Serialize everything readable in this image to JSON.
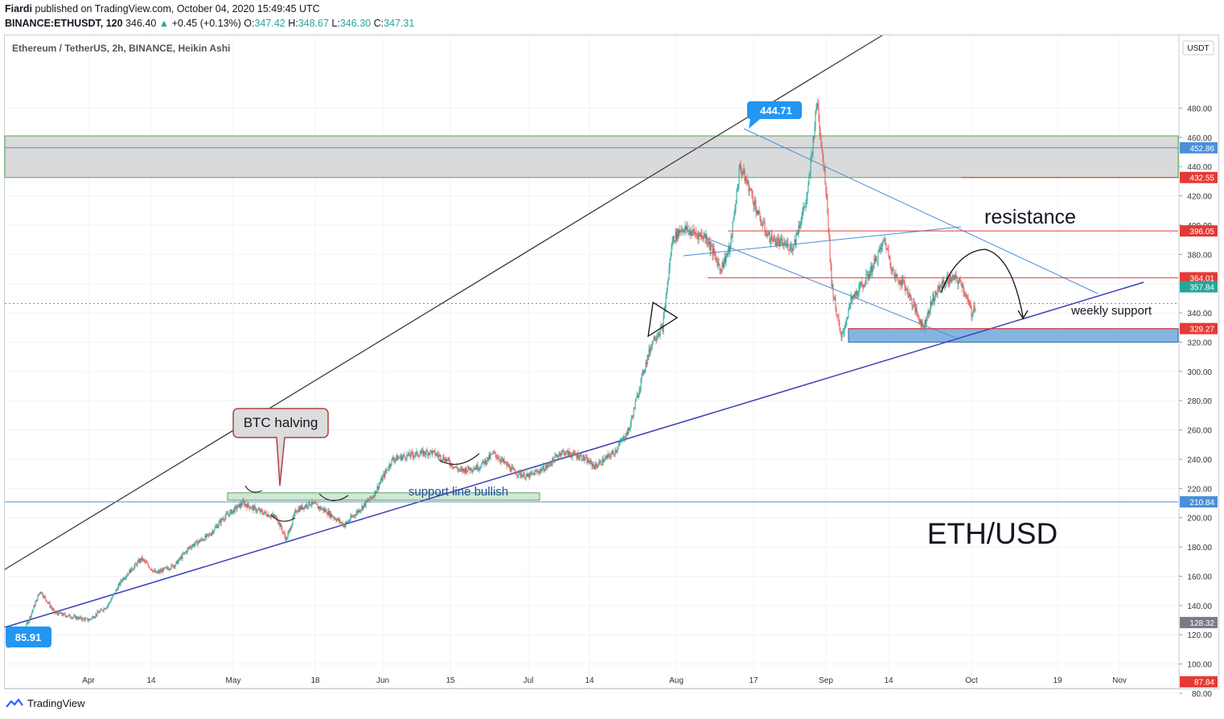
{
  "header": {
    "publisher": "Fiardi",
    "published_text": "published on TradingView.com, October 04, 2020 15:49:45 UTC",
    "symbol": "BINANCE:ETHUSDT, 120",
    "last": "346.40",
    "change": "+0.45 (+0.13%)",
    "o_label": "O:",
    "o": "347.42",
    "h_label": "H:",
    "h": "348.67",
    "l_label": "L:",
    "l": "346.30",
    "c_label": "C:",
    "c": "347.31"
  },
  "footer": {
    "brand": "TradingView"
  },
  "colors": {
    "up": "#26a69a",
    "down": "#ef5350",
    "blue_line": "#3b3fb5",
    "light_blue": "#4a90d9",
    "resistance_red": "#e53935",
    "zone_gray": "#d6d6d6",
    "zone_green": "#4caf50",
    "support_blue": "#5b9bd5"
  },
  "chart_data": {
    "type": "candlestick",
    "title": "Ethereum / TetherUS, 2h, BINANCE, Heikin Ashi",
    "currency_label": "USDT",
    "x_ticks": [
      "Apr",
      "14",
      "May",
      "18",
      "Jun",
      "15",
      "Jul",
      "14",
      "Aug",
      "17",
      "Sep",
      "14",
      "Oct",
      "19",
      "Nov"
    ],
    "y_ticks": [
      80,
      100,
      120,
      140,
      160,
      180,
      200,
      220,
      240,
      260,
      280,
      300,
      320,
      340,
      360,
      380,
      400,
      420,
      440,
      460,
      480
    ],
    "ylim": [
      80,
      490
    ],
    "price_path": [
      [
        0,
        112
      ],
      [
        4,
        125
      ],
      [
        7,
        150
      ],
      [
        10,
        135
      ],
      [
        14,
        132
      ],
      [
        17,
        130
      ],
      [
        21,
        140
      ],
      [
        24,
        158
      ],
      [
        28,
        172
      ],
      [
        31,
        162
      ],
      [
        35,
        168
      ],
      [
        38,
        180
      ],
      [
        42,
        188
      ],
      [
        45,
        200
      ],
      [
        49,
        210
      ],
      [
        52,
        205
      ],
      [
        56,
        200
      ],
      [
        58,
        185
      ],
      [
        60,
        205
      ],
      [
        63,
        210
      ],
      [
        66,
        205
      ],
      [
        70,
        195
      ],
      [
        73,
        205
      ],
      [
        76,
        215
      ],
      [
        80,
        240
      ],
      [
        84,
        243
      ],
      [
        88,
        245
      ],
      [
        91,
        240
      ],
      [
        94,
        232
      ],
      [
        98,
        235
      ],
      [
        101,
        244
      ],
      [
        105,
        232
      ],
      [
        108,
        228
      ],
      [
        112,
        235
      ],
      [
        115,
        245
      ],
      [
        119,
        242
      ],
      [
        122,
        235
      ],
      [
        126,
        245
      ],
      [
        129,
        260
      ],
      [
        132,
        300
      ],
      [
        134,
        322
      ],
      [
        136,
        330
      ],
      [
        138,
        390
      ],
      [
        140,
        398
      ],
      [
        142,
        395
      ],
      [
        145,
        392
      ],
      [
        148,
        370
      ],
      [
        150,
        385
      ],
      [
        152,
        440
      ],
      [
        154,
        425
      ],
      [
        156,
        405
      ],
      [
        158,
        392
      ],
      [
        160,
        388
      ],
      [
        163,
        385
      ],
      [
        166,
        420
      ],
      [
        168,
        485
      ],
      [
        170,
        420
      ],
      [
        171,
        360
      ],
      [
        173,
        322
      ],
      [
        175,
        348
      ],
      [
        178,
        362
      ],
      [
        180,
        375
      ],
      [
        182,
        390
      ],
      [
        184,
        365
      ],
      [
        186,
        360
      ],
      [
        188,
        345
      ],
      [
        190,
        330
      ],
      [
        192,
        350
      ],
      [
        194,
        360
      ],
      [
        196,
        364
      ],
      [
        198,
        360
      ],
      [
        200,
        340
      ],
      [
        201,
        347
      ]
    ],
    "levels": [
      {
        "label": "452.86",
        "price": 452.86,
        "style": "light-blue"
      },
      {
        "label": "432.55",
        "price": 432.55,
        "style": "red"
      },
      {
        "label": "396.05",
        "price": 396.05,
        "style": "red"
      },
      {
        "label": "364.01",
        "price": 364.01,
        "style": "red"
      },
      {
        "label": "357.84",
        "price": 357.84,
        "style": "teal"
      },
      {
        "label": "329.27",
        "price": 329.27,
        "style": "red"
      },
      {
        "label": "210.84",
        "price": 210.84,
        "style": "light-blue"
      },
      {
        "label": "128.32",
        "price": 128.32,
        "style": "gray"
      },
      {
        "label": "87.84",
        "price": 87.84,
        "style": "red"
      }
    ],
    "last_price_line": 346.4,
    "annotations": {
      "top_callout": "444.71",
      "bottom_callout": "85.91",
      "btc_halving": "BTC halving",
      "support_line_text": "support line bullish",
      "resistance_text": "resistance",
      "weekly_support_text": "weekly support",
      "pair_text": "ETH/USD"
    }
  }
}
